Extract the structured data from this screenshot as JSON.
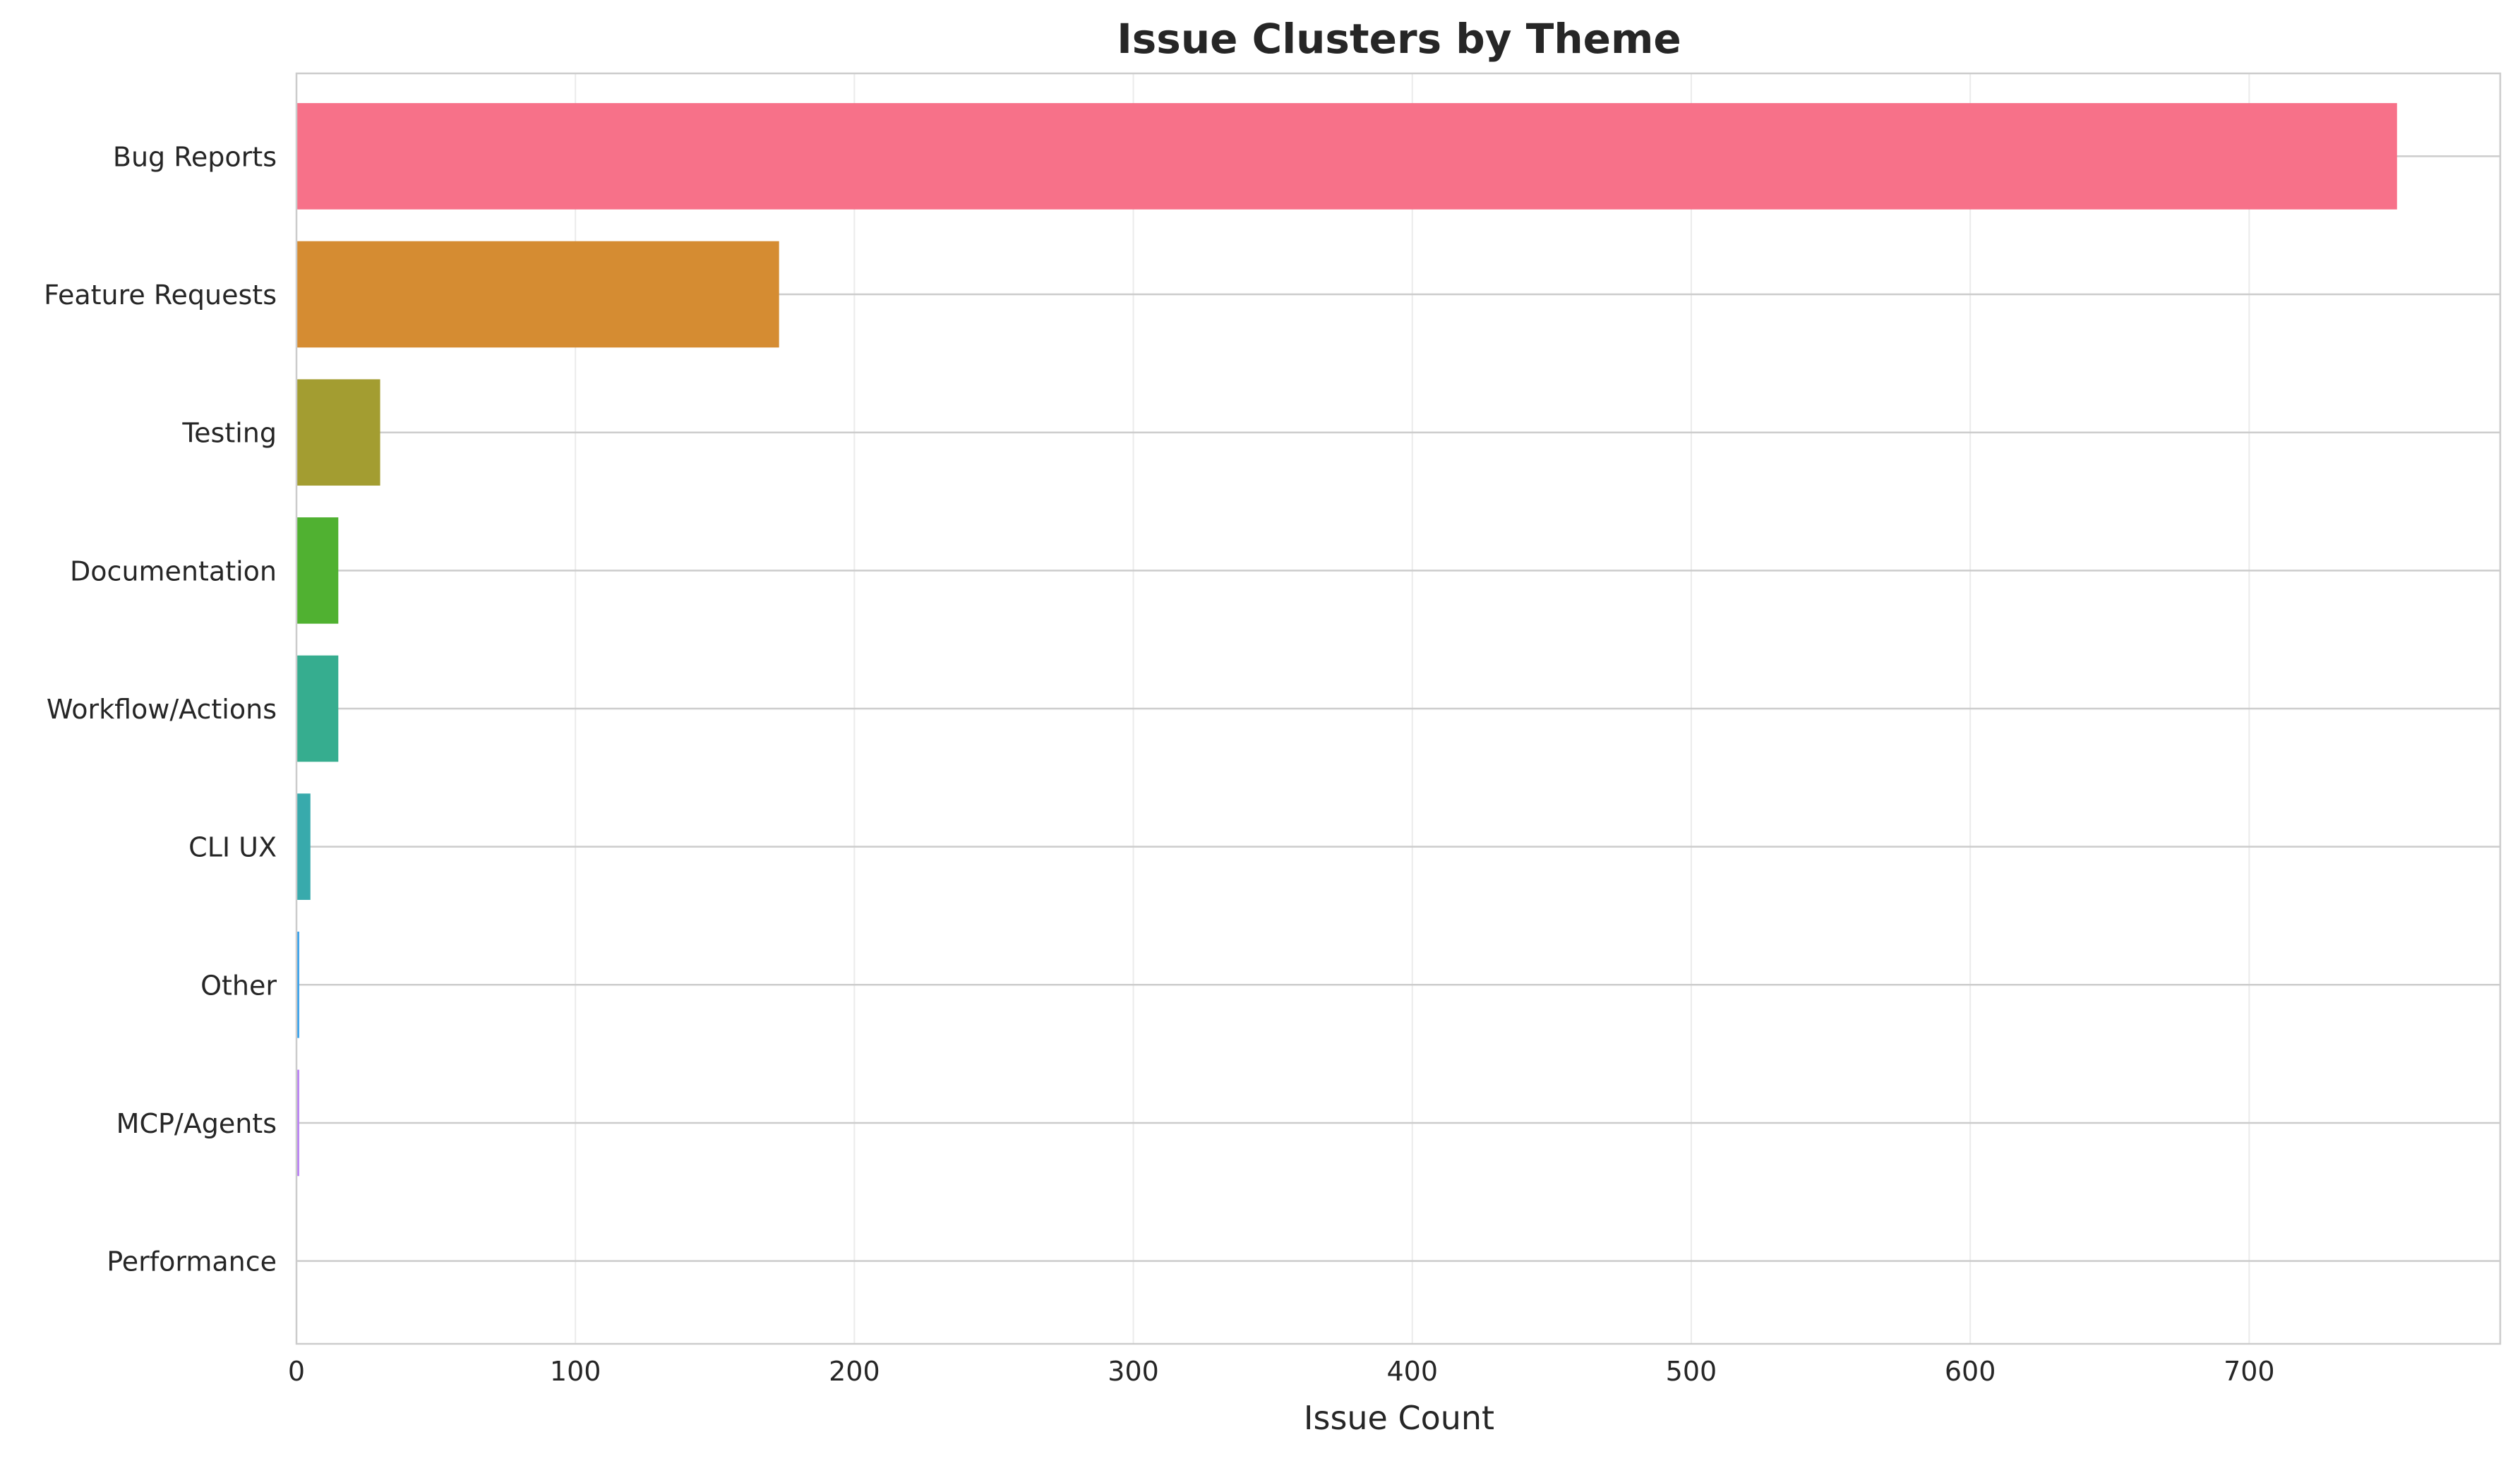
{
  "chart_data": {
    "type": "bar",
    "orientation": "horizontal",
    "title": "Issue Clusters by Theme",
    "xlabel": "Issue Count",
    "ylabel": "",
    "xlim": [
      0,
      790
    ],
    "xticks": [
      0,
      100,
      200,
      300,
      400,
      500,
      600,
      700
    ],
    "grid": true,
    "categories": [
      "Bug Reports",
      "Feature Requests",
      "Testing",
      "Documentation",
      "Workflow/Actions",
      "CLI UX",
      "Other",
      "MCP/Agents",
      "Performance"
    ],
    "values": [
      753,
      173,
      30,
      15,
      15,
      5,
      1,
      1,
      0
    ],
    "colors": [
      "#f77189",
      "#d58c32",
      "#a39d31",
      "#50b131",
      "#36ad8f",
      "#38aaac",
      "#3ba3ec",
      "#bb83f4",
      "#f668c2"
    ]
  }
}
